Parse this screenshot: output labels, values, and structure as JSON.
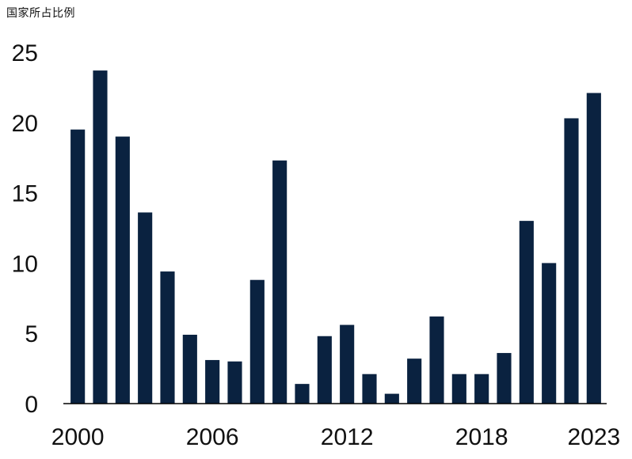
{
  "chart_data": {
    "type": "bar",
    "title": "国家所占比例",
    "xlabel": "",
    "ylabel": "",
    "categories": [
      "2000",
      "2001",
      "2002",
      "2003",
      "2004",
      "2005",
      "2006",
      "2007",
      "2008",
      "2009",
      "2010",
      "2011",
      "2012",
      "2013",
      "2014",
      "2015",
      "2016",
      "2017",
      "2018",
      "2019",
      "2020",
      "2021",
      "2022",
      "2023"
    ],
    "values": [
      19.5,
      23.7,
      19.0,
      13.6,
      9.4,
      4.9,
      3.1,
      3.0,
      8.8,
      17.3,
      1.4,
      4.8,
      5.6,
      2.1,
      0.7,
      3.2,
      6.2,
      2.1,
      2.1,
      3.6,
      13.0,
      10.0,
      20.3,
      22.1
    ],
    "x_tick_labels": [
      "2000",
      "2006",
      "2012",
      "2018",
      "2023"
    ],
    "y_ticks": [
      0,
      5,
      10,
      15,
      20,
      25
    ],
    "ylim": [
      0,
      25
    ],
    "grid": false,
    "bar_color": "#0a2240"
  }
}
